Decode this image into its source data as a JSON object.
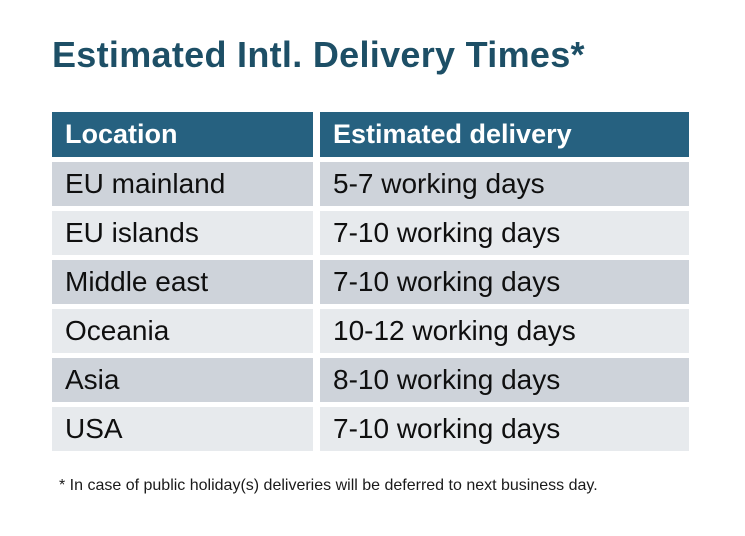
{
  "title": "Estimated Intl. Delivery Times*",
  "table": {
    "columns": [
      "Location",
      "Estimated delivery"
    ],
    "rows": [
      {
        "location": "EU mainland",
        "delivery": "5-7 working days"
      },
      {
        "location": "EU islands",
        "delivery": "7-10 working days"
      },
      {
        "location": "Middle east",
        "delivery": "7-10 working days"
      },
      {
        "location": "Oceania",
        "delivery": "10-12 working days"
      },
      {
        "location": "Asia",
        "delivery": "8-10 working days"
      },
      {
        "location": "USA",
        "delivery": "7-10 working days"
      }
    ]
  },
  "footnote": "* In case of public holiday(s) deliveries will be deferred to next business day.",
  "colors": {
    "title_color": "#1d4f66",
    "header_bg": "#266180",
    "header_text": "#ffffff",
    "row_dark": "#ced3da",
    "row_light": "#e7eaed",
    "cell_text": "#0f0f0f",
    "footnote_color": "#1a1a1a",
    "page_bg": "#ffffff"
  }
}
